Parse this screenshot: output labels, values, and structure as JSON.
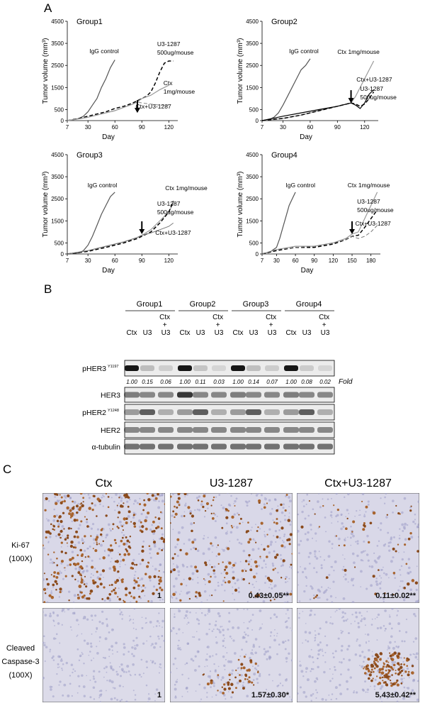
{
  "panel_a": {
    "label": "A"
  },
  "chart_data": [
    {
      "type": "line",
      "title": "Group1",
      "ylabel": "Tumor volume (mm³)",
      "xlabel": "Day",
      "xlim": [
        7,
        130
      ],
      "xticks": [
        7,
        30,
        60,
        90,
        120
      ],
      "ylim": [
        0,
        4500
      ],
      "yticks": [
        0,
        500,
        1500,
        2500,
        3500,
        4500
      ],
      "treatment_day": 85,
      "series": [
        {
          "name": "IgG control",
          "color": "#555555",
          "dash": false,
          "width": 1.2,
          "x": [
            7,
            15,
            20,
            25,
            30,
            35,
            40,
            45,
            50,
            55,
            60
          ],
          "values": [
            0,
            50,
            100,
            200,
            400,
            700,
            1000,
            1500,
            1900,
            2400,
            2750
          ]
        },
        {
          "name": "U3-1287 500ug/mouse",
          "color": "#000000",
          "dash": true,
          "width": 1.5,
          "x": [
            7,
            20,
            30,
            40,
            50,
            60,
            70,
            80,
            85,
            90,
            95,
            100,
            105,
            110,
            115,
            120,
            125
          ],
          "values": [
            0,
            100,
            200,
            300,
            400,
            550,
            650,
            800,
            900,
            1000,
            1100,
            1300,
            1700,
            2200,
            2600,
            2700,
            2700
          ]
        },
        {
          "name": "Ctx 1mg/mouse",
          "color": "#999999",
          "dash": false,
          "width": 1.2,
          "x": [
            7,
            20,
            30,
            40,
            50,
            60,
            70,
            80,
            85,
            90,
            100,
            110,
            120
          ],
          "values": [
            0,
            80,
            150,
            250,
            350,
            450,
            600,
            750,
            850,
            1000,
            1150,
            1400,
            1600
          ]
        },
        {
          "name": "Ctx+U3-1287",
          "color": "#999999",
          "dash": true,
          "width": 1.2,
          "x": [
            7,
            20,
            30,
            40,
            50,
            60,
            70,
            80,
            85,
            90,
            100,
            110,
            120
          ],
          "values": [
            0,
            80,
            150,
            250,
            350,
            450,
            600,
            750,
            850,
            800,
            750,
            700,
            700
          ]
        }
      ]
    },
    {
      "type": "line",
      "title": "Group2",
      "ylabel": "Tumor volume (mm³)",
      "xlabel": "Day",
      "xlim": [
        7,
        135
      ],
      "xticks": [
        7,
        30,
        60,
        90,
        120
      ],
      "ylim": [
        0,
        4500
      ],
      "yticks": [
        0,
        500,
        1500,
        2500,
        3500,
        4500
      ],
      "treatment_day": 105,
      "series": [
        {
          "name": "IgG control",
          "color": "#555555",
          "dash": false,
          "width": 1.2,
          "x": [
            7,
            15,
            20,
            25,
            30,
            35,
            40,
            45,
            50,
            55,
            60
          ],
          "values": [
            0,
            50,
            150,
            350,
            700,
            1100,
            1500,
            1900,
            2300,
            2500,
            2800
          ]
        },
        {
          "name": "Ctx 1mg/mouse",
          "color": "#999999",
          "dash": false,
          "width": 1.2,
          "x": [
            7,
            30,
            50,
            70,
            90,
            100,
            105,
            110,
            115,
            120,
            125,
            130
          ],
          "values": [
            0,
            100,
            250,
            450,
            650,
            750,
            800,
            1100,
            1500,
            1900,
            2300,
            2700
          ]
        },
        {
          "name": "Ctx+U3-1287",
          "color": "#000000",
          "dash": false,
          "width": 1.2,
          "x": [
            7,
            30,
            50,
            70,
            90,
            100,
            105,
            110,
            115,
            120,
            125,
            130
          ],
          "values": [
            0,
            200,
            350,
            500,
            650,
            750,
            800,
            700,
            550,
            800,
            1200,
            1400
          ]
        },
        {
          "name": "U3-1287 500ug/mouse",
          "color": "#000000",
          "dash": true,
          "width": 1.5,
          "x": [
            7,
            30,
            50,
            70,
            90,
            100,
            105,
            110,
            115,
            120,
            125,
            130
          ],
          "values": [
            0,
            100,
            250,
            450,
            650,
            750,
            800,
            750,
            650,
            750,
            1000,
            1300
          ]
        }
      ]
    },
    {
      "type": "line",
      "title": "Group3",
      "ylabel": "Tumor volume (mm³)",
      "xlabel": "Day",
      "xlim": [
        7,
        130
      ],
      "xticks": [
        7,
        30,
        60,
        90,
        120
      ],
      "ylim": [
        0,
        4500
      ],
      "yticks": [
        0,
        500,
        1500,
        2500,
        3500,
        4500
      ],
      "treatment_day": 90,
      "series": [
        {
          "name": "IgG control",
          "color": "#555555",
          "dash": false,
          "width": 1.2,
          "x": [
            7,
            20,
            25,
            30,
            35,
            40,
            45,
            50,
            55,
            60
          ],
          "values": [
            0,
            50,
            150,
            400,
            800,
            1300,
            1800,
            2200,
            2600,
            2800
          ]
        },
        {
          "name": "Ctx 1mg/mouse",
          "color": "#999999",
          "dash": false,
          "width": 1.2,
          "x": [
            7,
            30,
            50,
            70,
            85,
            90,
            100,
            110,
            120,
            125
          ],
          "values": [
            0,
            150,
            350,
            550,
            750,
            850,
            1100,
            1500,
            1900,
            2300
          ]
        },
        {
          "name": "U3-1287 500ug/mouse",
          "color": "#000000",
          "dash": true,
          "width": 1.5,
          "x": [
            7,
            30,
            50,
            70,
            85,
            90,
            100,
            110,
            120,
            125
          ],
          "values": [
            0,
            120,
            300,
            500,
            700,
            800,
            1000,
            1400,
            1900,
            2400
          ]
        },
        {
          "name": "Ctx+U3-1287",
          "color": "#777777",
          "dash": false,
          "width": 1,
          "x": [
            7,
            30,
            50,
            70,
            85,
            90,
            100,
            110,
            120,
            125
          ],
          "values": [
            0,
            150,
            350,
            550,
            750,
            850,
            950,
            1100,
            1250,
            1400
          ]
        }
      ]
    },
    {
      "type": "line",
      "title": "Group4",
      "ylabel": "Tumor volume (mm³)",
      "xlabel": "Day",
      "xlim": [
        7,
        195
      ],
      "xticks": [
        7,
        30,
        60,
        90,
        120,
        150,
        180
      ],
      "ylim": [
        0,
        4500
      ],
      "yticks": [
        0,
        500,
        1500,
        2500,
        3500,
        4500
      ],
      "treatment_day": 150,
      "series": [
        {
          "name": "IgG control",
          "color": "#555555",
          "dash": false,
          "width": 1.2,
          "x": [
            7,
            20,
            30,
            35,
            40,
            45,
            50,
            55,
            60
          ],
          "values": [
            0,
            100,
            300,
            700,
            1200,
            1700,
            2200,
            2500,
            2800
          ]
        },
        {
          "name": "Ctx 1mg/mouse",
          "color": "#999999",
          "dash": false,
          "width": 1.2,
          "x": [
            7,
            30,
            60,
            90,
            120,
            140,
            150,
            160,
            170,
            180,
            190
          ],
          "values": [
            0,
            200,
            350,
            350,
            500,
            700,
            900,
            1000,
            1600,
            2200,
            2800
          ]
        },
        {
          "name": "U3-1287 500ug/mouse",
          "color": "#000000",
          "dash": true,
          "width": 1.5,
          "x": [
            7,
            30,
            60,
            90,
            120,
            140,
            150,
            160,
            170,
            180,
            190
          ],
          "values": [
            0,
            150,
            300,
            300,
            450,
            650,
            800,
            850,
            1200,
            1600,
            2000
          ]
        },
        {
          "name": "Ctx+U3-1287",
          "color": "#777777",
          "dash": true,
          "width": 1,
          "x": [
            7,
            30,
            60,
            90,
            120,
            140,
            150,
            160,
            170,
            180,
            190
          ],
          "values": [
            0,
            200,
            300,
            350,
            500,
            650,
            800,
            700,
            800,
            1000,
            1300
          ]
        }
      ]
    }
  ],
  "blot": {
    "label": "B",
    "fold_label": "Fold",
    "groups": [
      {
        "name": "Group1",
        "lanes": [
          "Ctx",
          "U3",
          "Ctx + U3"
        ],
        "values": [
          1,
          0.15,
          0.06
        ],
        "value_labels": [
          "1.00",
          "0.15",
          "0.06"
        ]
      },
      {
        "name": "Group2",
        "lanes": [
          "Ctx",
          "U3",
          "Ctx + U3"
        ],
        "values": [
          1,
          0.11,
          0.03
        ],
        "value_labels": [
          "1.00",
          "0.11",
          "0.03"
        ]
      },
      {
        "name": "Group3",
        "lanes": [
          "Ctx",
          "U3",
          "Ctx + U3"
        ],
        "values": [
          1,
          0.14,
          0.07
        ],
        "value_labels": [
          "1.00",
          "0.14",
          "0.07"
        ]
      },
      {
        "name": "Group4",
        "lanes": [
          "Ctx",
          "U3",
          "Ctx + U3"
        ],
        "values": [
          1,
          0.08,
          0.02
        ],
        "value_labels": [
          "1.00",
          "0.08",
          "0.02"
        ]
      }
    ],
    "rows": [
      {
        "name": "pHER3",
        "site": "Y1197"
      },
      {
        "name": "HER3"
      },
      {
        "name": "pHER2",
        "site": "Y1248"
      },
      {
        "name": "HER2"
      },
      {
        "name": "α-tubulin"
      }
    ]
  },
  "histology": {
    "label": "C",
    "columns": [
      "Ctx",
      "U3-1287",
      "Ctx+U3-1287"
    ],
    "rows": [
      {
        "label_lines": [
          "Ki-67",
          "(100X)"
        ],
        "values": [
          "1",
          "0.43±0.05**",
          "0.11±0.02**"
        ]
      },
      {
        "label_lines": [
          "Cleaved",
          "Caspase-3",
          "(100X)"
        ],
        "values": [
          "1",
          "1.57±0.30*",
          "5.43±0.42**"
        ]
      }
    ]
  }
}
